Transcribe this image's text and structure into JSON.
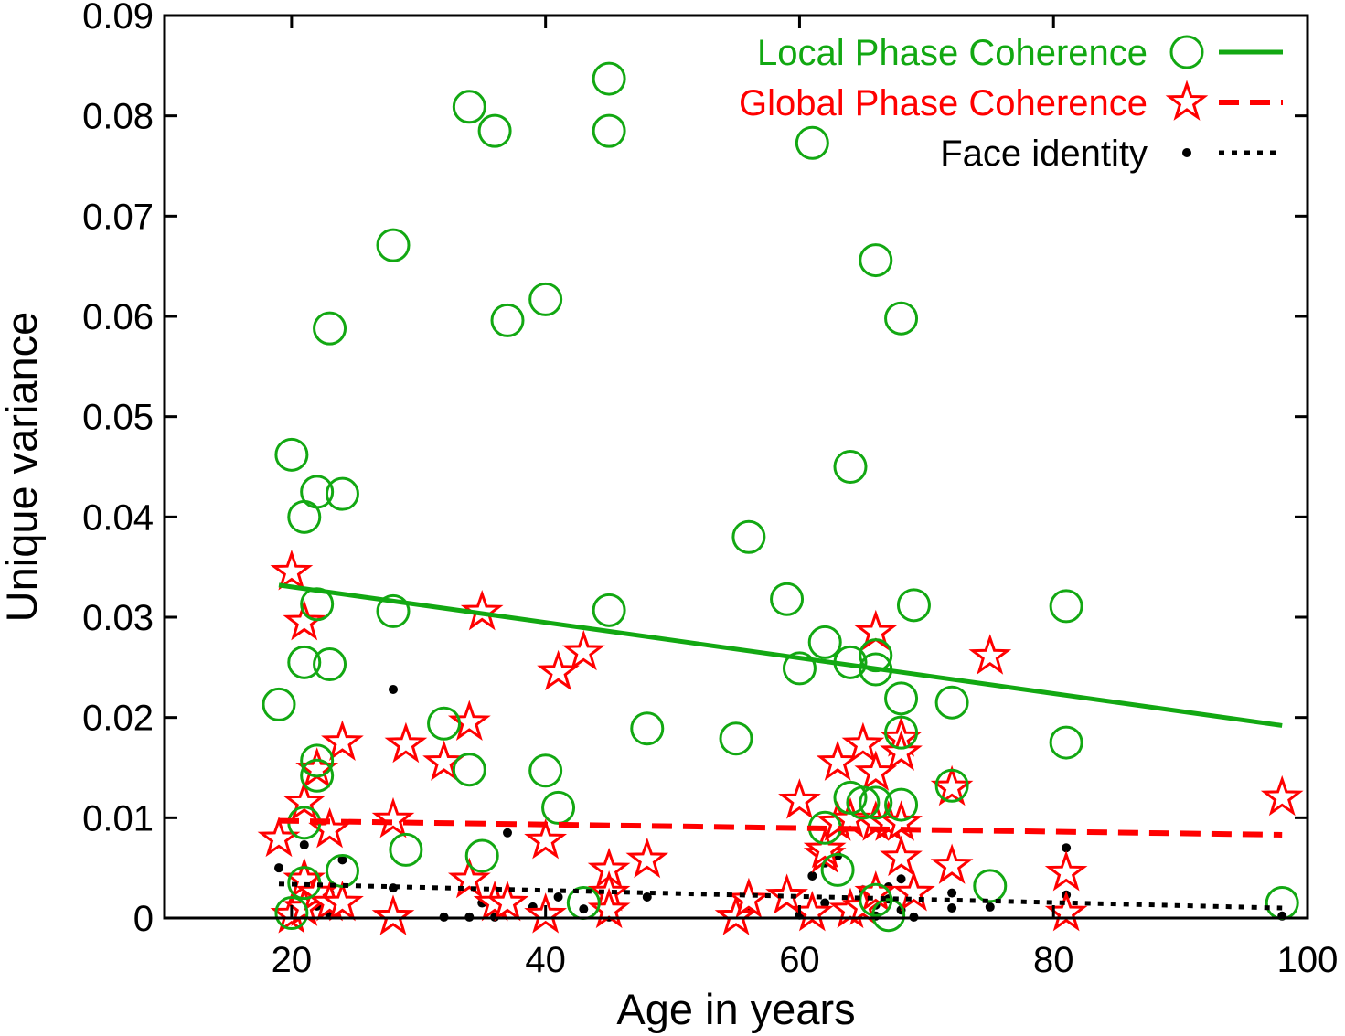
{
  "chart_data": {
    "type": "scatter",
    "title": "",
    "xlabel": "Age in years",
    "ylabel": "Unique variance",
    "xlim": [
      10,
      100
    ],
    "ylim": [
      0,
      0.09
    ],
    "x_ticks": [
      20,
      40,
      60,
      80,
      100
    ],
    "y_ticks": [
      0,
      0.01,
      0.02,
      0.03,
      0.04,
      0.05,
      0.06,
      0.07,
      0.08,
      0.09
    ],
    "x_tick_labels": [
      "20",
      "40",
      "60",
      "80",
      "100"
    ],
    "y_tick_labels": [
      "0",
      "0.01",
      "0.02",
      "0.03",
      "0.04",
      "0.05",
      "0.06",
      "0.07",
      "0.08",
      "0.09"
    ],
    "grid": false,
    "legend_position": "top-right",
    "series": [
      {
        "name": "Local Phase Coherence",
        "color": "#12a812",
        "marker": "circle",
        "line_style": "solid",
        "trend": [
          [
            19,
            0.0332
          ],
          [
            98,
            0.0192
          ]
        ],
        "points": [
          [
            19,
            0.0213
          ],
          [
            20,
            0.0462
          ],
          [
            20,
            0.0005
          ],
          [
            21,
            0.04
          ],
          [
            21,
            0.0255
          ],
          [
            21,
            0.0095
          ],
          [
            21,
            0.0035
          ],
          [
            22,
            0.0425
          ],
          [
            22,
            0.0313
          ],
          [
            22,
            0.0157
          ],
          [
            22,
            0.0142
          ],
          [
            23,
            0.0588
          ],
          [
            23,
            0.0253
          ],
          [
            24,
            0.0423
          ],
          [
            24,
            0.0047
          ],
          [
            28,
            0.0671
          ],
          [
            28,
            0.0306
          ],
          [
            29,
            0.0068
          ],
          [
            32,
            0.0194
          ],
          [
            34,
            0.0809
          ],
          [
            34,
            0.0148
          ],
          [
            35,
            0.0062
          ],
          [
            36,
            0.0785
          ],
          [
            37,
            0.0596
          ],
          [
            40,
            0.0617
          ],
          [
            40,
            0.0147
          ],
          [
            41,
            0.011
          ],
          [
            43,
            0.0015
          ],
          [
            45,
            0.0837
          ],
          [
            45,
            0.0785
          ],
          [
            45,
            0.0307
          ],
          [
            48,
            0.0189
          ],
          [
            55,
            0.0179
          ],
          [
            56,
            0.038
          ],
          [
            59,
            0.0318
          ],
          [
            60,
            0.0249
          ],
          [
            61,
            0.0773
          ],
          [
            62,
            0.0275
          ],
          [
            62,
            0.009
          ],
          [
            63,
            0.0048
          ],
          [
            64,
            0.045
          ],
          [
            64,
            0.0255
          ],
          [
            64,
            0.012
          ],
          [
            65,
            0.0115
          ],
          [
            66,
            0.0656
          ],
          [
            66,
            0.0262
          ],
          [
            66,
            0.0248
          ],
          [
            66,
            0.0115
          ],
          [
            66,
            0.0018
          ],
          [
            67,
            0.0003
          ],
          [
            68,
            0.0598
          ],
          [
            68,
            0.0219
          ],
          [
            68,
            0.0185
          ],
          [
            68,
            0.0113
          ],
          [
            69,
            0.0312
          ],
          [
            72,
            0.0215
          ],
          [
            72,
            0.0132
          ],
          [
            75,
            0.0032
          ],
          [
            81,
            0.0311
          ],
          [
            81,
            0.0175
          ],
          [
            98,
            0.0015
          ]
        ]
      },
      {
        "name": "Global Phase Coherence",
        "color": "#ff0000",
        "marker": "star",
        "line_style": "dashed",
        "trend": [
          [
            19,
            0.0097
          ],
          [
            98,
            0.0083
          ]
        ],
        "points": [
          [
            19,
            0.0079
          ],
          [
            20,
            0.0345
          ],
          [
            20,
            0.0003
          ],
          [
            21,
            0.0295
          ],
          [
            21,
            0.0115
          ],
          [
            21,
            0.0038
          ],
          [
            21,
            0.001
          ],
          [
            22,
            0.0148
          ],
          [
            22,
            0.0025
          ],
          [
            23,
            0.0088
          ],
          [
            23,
            0.0015
          ],
          [
            24,
            0.0175
          ],
          [
            24,
            0.0015
          ],
          [
            28,
            0.0098
          ],
          [
            28,
            0.0001
          ],
          [
            29,
            0.0173
          ],
          [
            32,
            0.0155
          ],
          [
            34,
            0.0195
          ],
          [
            34,
            0.0038
          ],
          [
            35,
            0.0305
          ],
          [
            36,
            0.0015
          ],
          [
            37,
            0.0015
          ],
          [
            40,
            0.0077
          ],
          [
            40,
            0.0003
          ],
          [
            41,
            0.0245
          ],
          [
            43,
            0.0265
          ],
          [
            45,
            0.0048
          ],
          [
            45,
            0.0025
          ],
          [
            45,
            0.0008
          ],
          [
            48,
            0.0058
          ],
          [
            55,
            0.0001
          ],
          [
            56,
            0.0018
          ],
          [
            59,
            0.0022
          ],
          [
            60,
            0.0117
          ],
          [
            61,
            0.0005
          ],
          [
            62,
            0.0063
          ],
          [
            62,
            0.0068
          ],
          [
            63,
            0.0155
          ],
          [
            63,
            0.0095
          ],
          [
            64,
            0.0098
          ],
          [
            64,
            0.0008
          ],
          [
            65,
            0.0173
          ],
          [
            65,
            0.0011
          ],
          [
            66,
            0.0285
          ],
          [
            66,
            0.0145
          ],
          [
            66,
            0.0095
          ],
          [
            66,
            0.0025
          ],
          [
            67,
            0.0095
          ],
          [
            68,
            0.0179
          ],
          [
            68,
            0.0165
          ],
          [
            68,
            0.0095
          ],
          [
            68,
            0.006
          ],
          [
            69,
            0.0025
          ],
          [
            72,
            0.013
          ],
          [
            72,
            0.0052
          ],
          [
            75,
            0.0261
          ],
          [
            81,
            0.0045
          ],
          [
            81,
            0.0005
          ],
          [
            98,
            0.012
          ]
        ]
      },
      {
        "name": "Face identity",
        "color": "#000000",
        "marker": "dot",
        "line_style": "dotted",
        "trend": [
          [
            19,
            0.0034
          ],
          [
            98,
            0.001
          ]
        ],
        "points": [
          [
            19,
            0.005
          ],
          [
            20,
            0.0005
          ],
          [
            20,
            0.0002
          ],
          [
            21,
            0.0073
          ],
          [
            21,
            0.0045
          ],
          [
            21,
            0.0008
          ],
          [
            22,
            0.0012
          ],
          [
            22,
            0.0035
          ],
          [
            23,
            0.0025
          ],
          [
            23,
            0.0003
          ],
          [
            24,
            0.0058
          ],
          [
            28,
            0.0228
          ],
          [
            28,
            0.003
          ],
          [
            32,
            0.0001
          ],
          [
            34,
            0.0001
          ],
          [
            34,
            0.004
          ],
          [
            35,
            0.0015
          ],
          [
            36,
            0.0001
          ],
          [
            37,
            0.0085
          ],
          [
            39,
            0.0011
          ],
          [
            40,
            0.0003
          ],
          [
            41,
            0.0021
          ],
          [
            43,
            0.0009
          ],
          [
            45,
            0.0028
          ],
          [
            45,
            0.0001
          ],
          [
            48,
            0.0021
          ],
          [
            55,
            0.0003
          ],
          [
            56,
            0.0007
          ],
          [
            59,
            0.0025
          ],
          [
            60,
            0.0003
          ],
          [
            61,
            0.0042
          ],
          [
            62,
            0.0055
          ],
          [
            62,
            0.0015
          ],
          [
            63,
            0.0062
          ],
          [
            64,
            0.0015
          ],
          [
            64,
            0.0003
          ],
          [
            65,
            0.0028
          ],
          [
            65,
            0.0009
          ],
          [
            66,
            0.0033
          ],
          [
            66,
            0.0013
          ],
          [
            66,
            0.0002
          ],
          [
            67,
            0.0031
          ],
          [
            67,
            0.0019
          ],
          [
            68,
            0.0039
          ],
          [
            68,
            0.0008
          ],
          [
            69,
            0.0001
          ],
          [
            72,
            0.0025
          ],
          [
            72,
            0.001
          ],
          [
            75,
            0.0011
          ],
          [
            81,
            0.007
          ],
          [
            81,
            0.0023
          ],
          [
            98,
            0.0002
          ]
        ]
      }
    ]
  }
}
